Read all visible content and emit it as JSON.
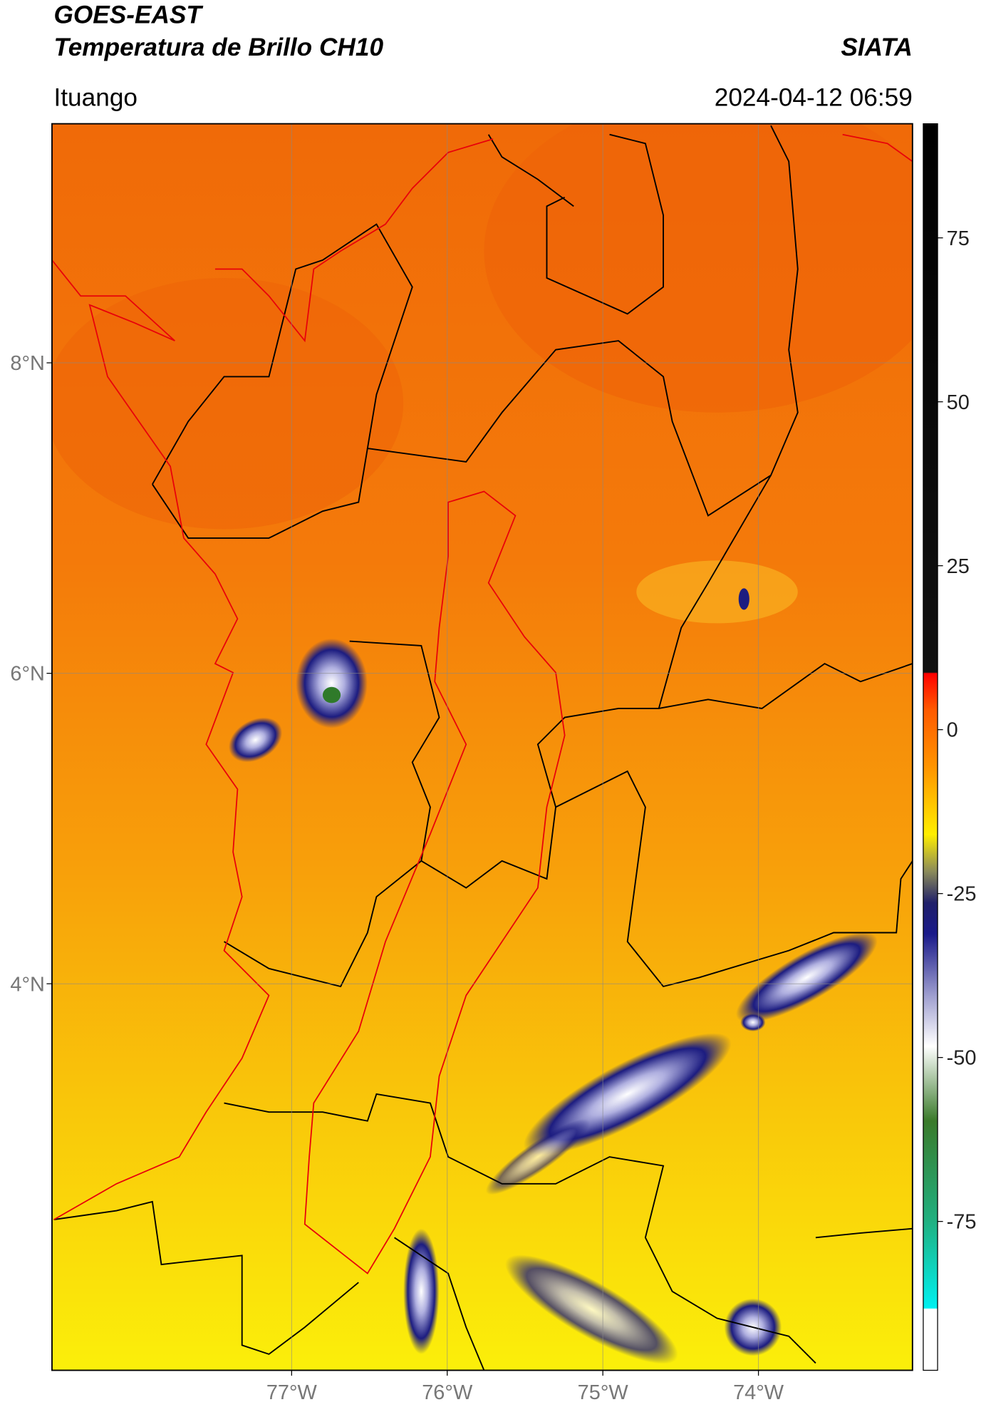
{
  "header": {
    "title_line1": "GOES-EAST",
    "title_line2": "Temperatura de Brillo CH10",
    "source": "SIATA",
    "region": "Ituango",
    "datetime": "2024-04-12 06:59"
  },
  "map": {
    "xlim": [
      -78.54,
      -73.01
    ],
    "ylim": [
      1.51,
      9.54
    ],
    "xticks": [
      {
        "value": -77,
        "label": "77°W"
      },
      {
        "value": -76,
        "label": "76°W"
      },
      {
        "value": -75,
        "label": "75°W"
      },
      {
        "value": -74,
        "label": "74°W"
      }
    ],
    "yticks": [
      {
        "value": 8,
        "label": "8°N"
      },
      {
        "value": 6,
        "label": "6°N"
      },
      {
        "value": 4,
        "label": "4°N"
      }
    ],
    "grid": true
  },
  "colorbar": {
    "lim": [
      -97.7,
      92.4
    ],
    "ticks": [
      75,
      50,
      25,
      0,
      -25,
      -50,
      -75
    ]
  }
}
